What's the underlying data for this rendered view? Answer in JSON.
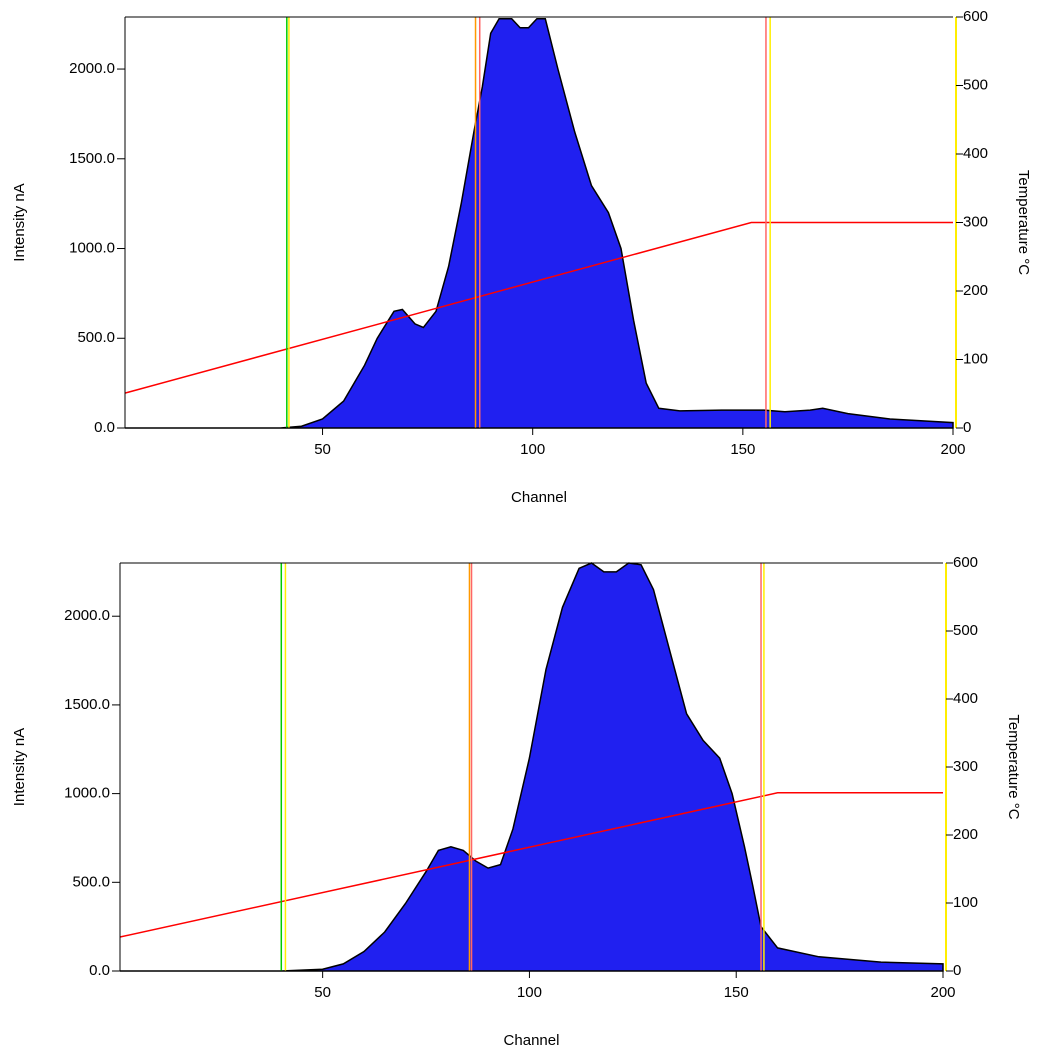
{
  "chart_data": [
    {
      "type": "area",
      "xlabel": "Channel",
      "ylabel": "Intensity nA",
      "y2label": "Temperature °C",
      "xlim": [
        3,
        200
      ],
      "xticks": [
        50,
        100,
        150,
        200
      ],
      "ylim": [
        0,
        2290
      ],
      "yticks": [
        {
          "value": 0,
          "label": "0.0"
        },
        {
          "value": 500,
          "label": "500.0"
        },
        {
          "value": 1000,
          "label": "1000.0"
        },
        {
          "value": 1500,
          "label": "1500.0"
        },
        {
          "value": 2000,
          "label": "2000.0"
        }
      ],
      "y2lim": [
        0,
        600
      ],
      "y2ticks": [
        0,
        100,
        200,
        300,
        400,
        500,
        600
      ],
      "series": [
        {
          "color": "#2020f0",
          "x": [
            3,
            40,
            45,
            50,
            55,
            60,
            63,
            67,
            69,
            72,
            74,
            77,
            80,
            83,
            86,
            88,
            90,
            92,
            95,
            97,
            99,
            101,
            103,
            106,
            110,
            114,
            118,
            121,
            124,
            127,
            130,
            135,
            145,
            155,
            160,
            166,
            169,
            175,
            185,
            200
          ],
          "values": [
            0,
            0,
            10,
            50,
            150,
            350,
            500,
            650,
            660,
            580,
            560,
            650,
            900,
            1250,
            1650,
            1900,
            2200,
            2280,
            2280,
            2230,
            2230,
            2280,
            2280,
            2000,
            1650,
            1350,
            1200,
            1000,
            600,
            250,
            110,
            95,
            100,
            100,
            90,
            100,
            110,
            80,
            50,
            30
          ]
        },
        {
          "color": "#ff0000",
          "axis": "y2",
          "x": [
            3,
            152,
            200
          ],
          "values": [
            51,
            300,
            300
          ]
        }
      ],
      "vlines": [
        {
          "x": 41.5,
          "color": "#00cc00"
        },
        {
          "x": 42,
          "color": "#ffee00"
        },
        {
          "x": 86.4,
          "color": "#ff9900"
        },
        {
          "x": 87.4,
          "color": "#ff6666"
        },
        {
          "x": 155.5,
          "color": "#ff6666"
        },
        {
          "x": 156.5,
          "color": "#ffee00"
        }
      ]
    },
    {
      "type": "area",
      "xlabel": "Channel",
      "ylabel": "Intensity nA",
      "y2label": "Temperature °C",
      "xlim": [
        1,
        200
      ],
      "xticks": [
        50,
        100,
        150,
        200
      ],
      "ylim": [
        0,
        2300
      ],
      "yticks": [
        {
          "value": 0,
          "label": "0.0"
        },
        {
          "value": 500,
          "label": "500.0"
        },
        {
          "value": 1000,
          "label": "1000.0"
        },
        {
          "value": 1500,
          "label": "1500.0"
        },
        {
          "value": 2000,
          "label": "2000.0"
        }
      ],
      "y2lim": [
        0,
        600
      ],
      "y2ticks": [
        0,
        100,
        200,
        300,
        400,
        500,
        600
      ],
      "series": [
        {
          "color": "#2020f0",
          "x": [
            1,
            40,
            50,
            55,
            60,
            65,
            70,
            75,
            78,
            81,
            84,
            87,
            90,
            93,
            96,
            100,
            104,
            108,
            112,
            115,
            118,
            121,
            124,
            127,
            130,
            134,
            138,
            142,
            146,
            149,
            152,
            154,
            156,
            160,
            170,
            185,
            200
          ],
          "values": [
            0,
            0,
            10,
            40,
            110,
            220,
            380,
            560,
            680,
            700,
            680,
            620,
            580,
            600,
            800,
            1200,
            1700,
            2050,
            2270,
            2300,
            2250,
            2250,
            2300,
            2290,
            2150,
            1800,
            1450,
            1300,
            1200,
            1000,
            700,
            480,
            250,
            130,
            80,
            50,
            40
          ]
        },
        {
          "color": "#ff0000",
          "axis": "y2",
          "x": [
            1,
            160,
            200
          ],
          "values": [
            50,
            262,
            262
          ]
        }
      ],
      "vlines": [
        {
          "x": 40,
          "color": "#00cc00"
        },
        {
          "x": 41,
          "color": "#ffee00"
        },
        {
          "x": 85.5,
          "color": "#ff9900"
        },
        {
          "x": 86,
          "color": "#ff6666"
        },
        {
          "x": 156,
          "color": "#ff6666"
        },
        {
          "x": 156.7,
          "color": "#ffee00"
        }
      ]
    }
  ]
}
